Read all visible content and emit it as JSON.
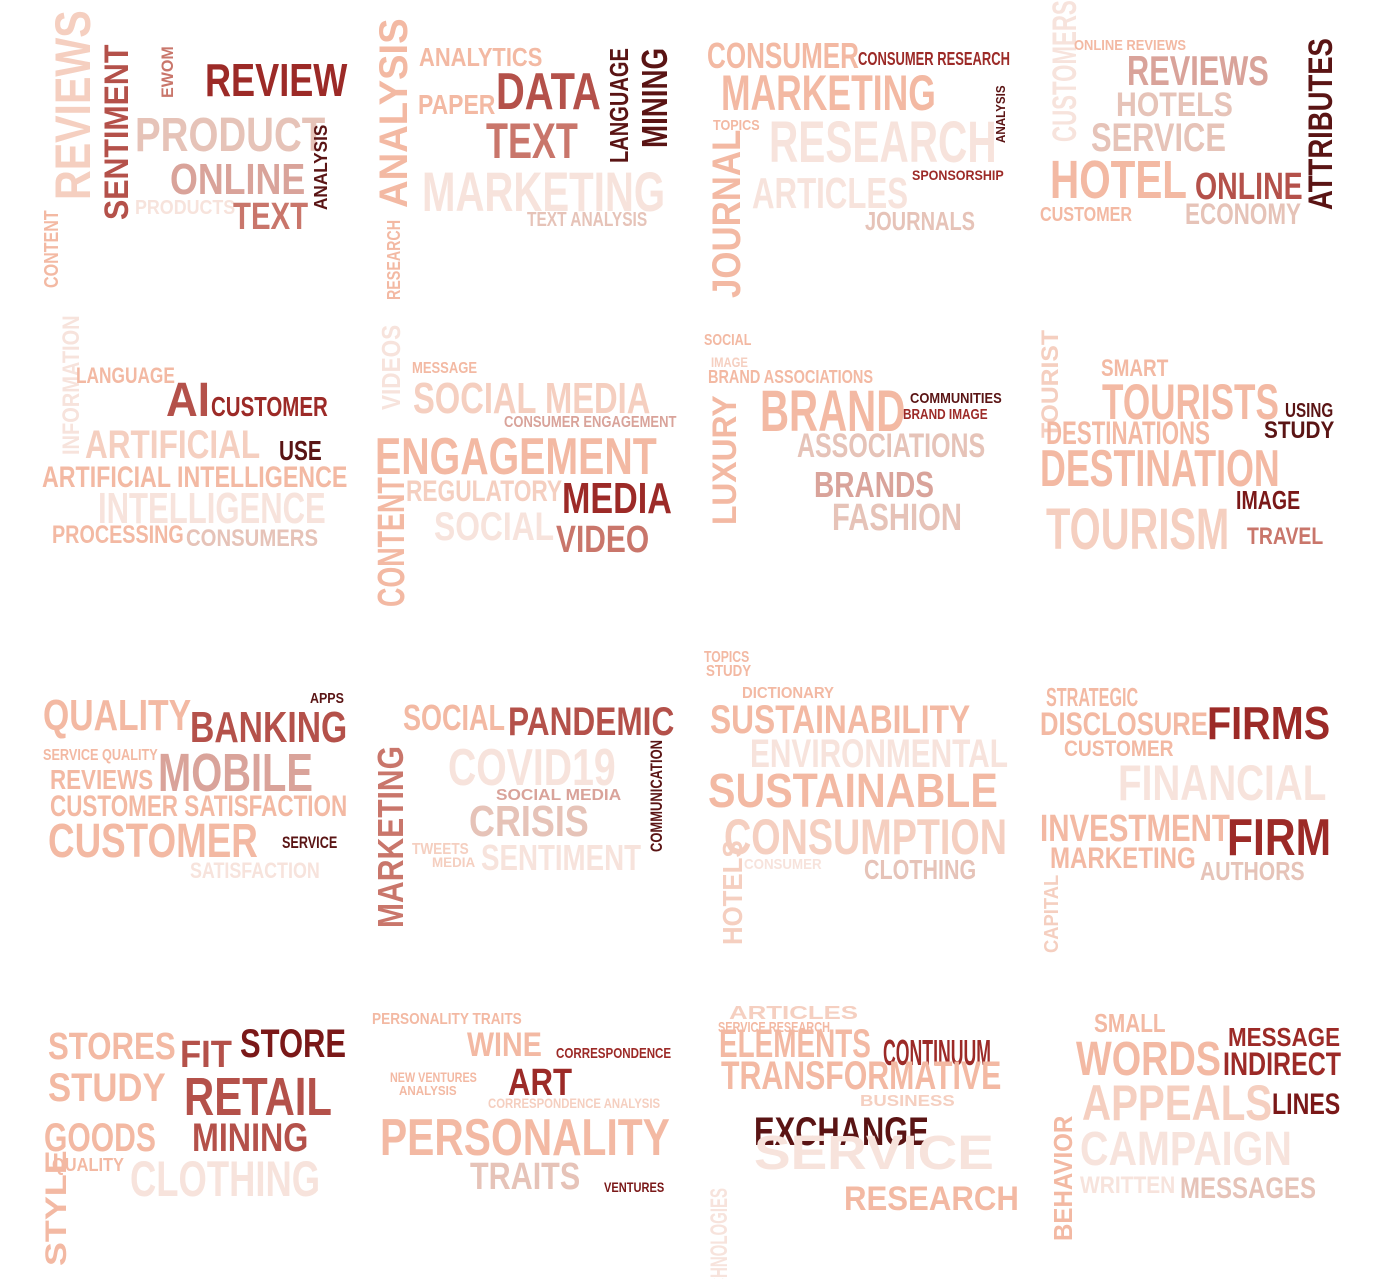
{
  "palette": {
    "c0": "#f7e3dc",
    "c1": "#f5cfc0",
    "c2": "#f3b9a3",
    "c3": "#e6c3b8",
    "c4": "#d9a39a",
    "c5": "#c9766b",
    "c6": "#b4514a",
    "c7": "#9c2a27",
    "c8": "#7a1818",
    "c9": "#5a1414"
  },
  "clouds": [
    {
      "words": [
        {
          "text": "REVIEWS",
          "color": "c1"
        },
        {
          "text": "SENTIMENT",
          "color": "c6"
        },
        {
          "text": "EWOM",
          "color": "c5"
        },
        {
          "text": "REVIEW",
          "color": "c7"
        },
        {
          "text": "PRODUCT",
          "color": "c3"
        },
        {
          "text": "ONLINE",
          "color": "c4"
        },
        {
          "text": "ANALYSIS",
          "color": "c9"
        },
        {
          "text": "PRODUCTS",
          "color": "c0"
        },
        {
          "text": "TEXT",
          "color": "c5"
        },
        {
          "text": "CONTENT",
          "color": "c2"
        }
      ]
    },
    {
      "words": [
        {
          "text": "ANALYSIS",
          "color": "c2"
        },
        {
          "text": "ANALYTICS",
          "color": "c2"
        },
        {
          "text": "DATA",
          "color": "c6"
        },
        {
          "text": "PAPER",
          "color": "c2"
        },
        {
          "text": "TEXT",
          "color": "c5"
        },
        {
          "text": "LANGUAGE",
          "color": "c9"
        },
        {
          "text": "MINING",
          "color": "c9"
        },
        {
          "text": "MARKETING",
          "color": "c0"
        },
        {
          "text": "TEXT ANALYSIS",
          "color": "c3"
        },
        {
          "text": "RESEARCH",
          "color": "c2"
        }
      ]
    },
    {
      "words": [
        {
          "text": "CONSUMER",
          "color": "c2"
        },
        {
          "text": "CONSUMER RESEARCH",
          "color": "c7"
        },
        {
          "text": "MARKETING",
          "color": "c2"
        },
        {
          "text": "ANALYSIS",
          "color": "c9"
        },
        {
          "text": "TOPICS",
          "color": "c2"
        },
        {
          "text": "RESEARCH",
          "color": "c0"
        },
        {
          "text": "JOURNAL",
          "color": "c2"
        },
        {
          "text": "SPONSORSHIP",
          "color": "c7"
        },
        {
          "text": "ARTICLES",
          "color": "c0"
        },
        {
          "text": "JOURNALS",
          "color": "c3"
        }
      ]
    },
    {
      "words": [
        {
          "text": "CUSTOMERS",
          "color": "c0"
        },
        {
          "text": "ONLINE REVIEWS",
          "color": "c2"
        },
        {
          "text": "REVIEWS",
          "color": "c4"
        },
        {
          "text": "HOTELS",
          "color": "c3"
        },
        {
          "text": "SERVICE",
          "color": "c3"
        },
        {
          "text": "ATTRIBUTES",
          "color": "c9"
        },
        {
          "text": "HOTEL",
          "color": "c2"
        },
        {
          "text": "ONLINE",
          "color": "c6"
        },
        {
          "text": "CUSTOMER",
          "color": "c2"
        },
        {
          "text": "ECONOMY",
          "color": "c3"
        }
      ]
    },
    {
      "words": [
        {
          "text": "INFORMATION",
          "color": "c0"
        },
        {
          "text": "LANGUAGE",
          "color": "c2"
        },
        {
          "text": "AI",
          "color": "c6"
        },
        {
          "text": "CUSTOMER",
          "color": "c7"
        },
        {
          "text": "ARTIFICIAL",
          "color": "c1"
        },
        {
          "text": "USE",
          "color": "c9"
        },
        {
          "text": "ARTIFICIAL INTELLIGENCE",
          "color": "c2"
        },
        {
          "text": "INTELLIGENCE",
          "color": "c0"
        },
        {
          "text": "PROCESSING",
          "color": "c2"
        },
        {
          "text": "CONSUMERS",
          "color": "c3"
        }
      ]
    },
    {
      "words": [
        {
          "text": "VIDEOS",
          "color": "c0"
        },
        {
          "text": "MESSAGE",
          "color": "c2"
        },
        {
          "text": "SOCIAL MEDIA",
          "color": "c1"
        },
        {
          "text": "CONSUMER ENGAGEMENT",
          "color": "c4"
        },
        {
          "text": "ENGAGEMENT",
          "color": "c2"
        },
        {
          "text": "CONTENT",
          "color": "c2"
        },
        {
          "text": "REGULATORY",
          "color": "c1"
        },
        {
          "text": "MEDIA",
          "color": "c7"
        },
        {
          "text": "SOCIAL",
          "color": "c0"
        },
        {
          "text": "VIDEO",
          "color": "c5"
        }
      ]
    },
    {
      "words": [
        {
          "text": "SOCIAL",
          "color": "c2"
        },
        {
          "text": "IMAGE",
          "color": "c1"
        },
        {
          "text": "BRAND ASSOCIATIONS",
          "color": "c2"
        },
        {
          "text": "LUXURY",
          "color": "c2"
        },
        {
          "text": "BRAND",
          "color": "c2"
        },
        {
          "text": "COMMUNITIES",
          "color": "c9"
        },
        {
          "text": "BRAND IMAGE",
          "color": "c7"
        },
        {
          "text": "ASSOCIATIONS",
          "color": "c3"
        },
        {
          "text": "BRANDS",
          "color": "c4"
        },
        {
          "text": "FASHION",
          "color": "c3"
        }
      ]
    },
    {
      "words": [
        {
          "text": "TOURIST",
          "color": "c1"
        },
        {
          "text": "SMART",
          "color": "c2"
        },
        {
          "text": "TOURISTS",
          "color": "c2"
        },
        {
          "text": "USING",
          "color": "c9"
        },
        {
          "text": "DESTINATIONS",
          "color": "c2"
        },
        {
          "text": "STUDY",
          "color": "c9"
        },
        {
          "text": "DESTINATION",
          "color": "c2"
        },
        {
          "text": "IMAGE",
          "color": "c8"
        },
        {
          "text": "TOURISM",
          "color": "c1"
        },
        {
          "text": "TRAVEL",
          "color": "c5"
        }
      ]
    },
    {
      "words": [
        {
          "text": "QUALITY",
          "color": "c2"
        },
        {
          "text": "APPS",
          "color": "c9"
        },
        {
          "text": "BANKING",
          "color": "c6"
        },
        {
          "text": "SERVICE QUALITY",
          "color": "c2"
        },
        {
          "text": "MOBILE",
          "color": "c4"
        },
        {
          "text": "REVIEWS",
          "color": "c2"
        },
        {
          "text": "CUSTOMER SATISFACTION",
          "color": "c2"
        },
        {
          "text": "CUSTOMER",
          "color": "c2"
        },
        {
          "text": "SERVICE",
          "color": "c9"
        },
        {
          "text": "SATISFACTION",
          "color": "c0"
        }
      ]
    },
    {
      "words": [
        {
          "text": "SOCIAL",
          "color": "c2"
        },
        {
          "text": "PANDEMIC",
          "color": "c6"
        },
        {
          "text": "COVID19",
          "color": "c0"
        },
        {
          "text": "COMMUNICATION",
          "color": "c9"
        },
        {
          "text": "MARKETING",
          "color": "c5"
        },
        {
          "text": "SOCIAL MEDIA",
          "color": "c4"
        },
        {
          "text": "CRISIS",
          "color": "c3"
        },
        {
          "text": "TWEETS",
          "color": "c1"
        },
        {
          "text": "MEDIA",
          "color": "c1"
        },
        {
          "text": "SENTIMENT",
          "color": "c0"
        }
      ]
    },
    {
      "words": [
        {
          "text": "TOPICS",
          "color": "c2"
        },
        {
          "text": "STUDY",
          "color": "c2"
        },
        {
          "text": "DICTIONARY",
          "color": "c2"
        },
        {
          "text": "SUSTAINABILITY",
          "color": "c2"
        },
        {
          "text": "ENVIRONMENTAL",
          "color": "c0"
        },
        {
          "text": "SUSTAINABLE",
          "color": "c2"
        },
        {
          "text": "CONSUMPTION",
          "color": "c1"
        },
        {
          "text": "HOTELS",
          "color": "c1"
        },
        {
          "text": "CONSUMER",
          "color": "c0"
        },
        {
          "text": "CLOTHING",
          "color": "c3"
        }
      ]
    },
    {
      "words": [
        {
          "text": "STRATEGIC",
          "color": "c2"
        },
        {
          "text": "DISCLOSURE",
          "color": "c2"
        },
        {
          "text": "FIRMS",
          "color": "c7"
        },
        {
          "text": "CUSTOMER",
          "color": "c2"
        },
        {
          "text": "FINANCIAL",
          "color": "c0"
        },
        {
          "text": "INVESTMENT",
          "color": "c2"
        },
        {
          "text": "FIRM",
          "color": "c7"
        },
        {
          "text": "MARKETING",
          "color": "c2"
        },
        {
          "text": "AUTHORS",
          "color": "c3"
        },
        {
          "text": "CAPITAL",
          "color": "c1"
        }
      ]
    },
    {
      "words": [
        {
          "text": "STORES",
          "color": "c2"
        },
        {
          "text": "FIT",
          "color": "c6"
        },
        {
          "text": "STORE",
          "color": "c8"
        },
        {
          "text": "STUDY",
          "color": "c2"
        },
        {
          "text": "RETAIL",
          "color": "c6"
        },
        {
          "text": "MINING",
          "color": "c6"
        },
        {
          "text": "GOODS",
          "color": "c2"
        },
        {
          "text": "QUALITY",
          "color": "c2"
        },
        {
          "text": "CLOTHING",
          "color": "c0"
        },
        {
          "text": "STYLE",
          "color": "c2"
        }
      ]
    },
    {
      "words": [
        {
          "text": "PERSONALITY TRAITS",
          "color": "c2"
        },
        {
          "text": "WINE",
          "color": "c2"
        },
        {
          "text": "CORRESPONDENCE",
          "color": "c7"
        },
        {
          "text": "NEW VENTURES",
          "color": "c2"
        },
        {
          "text": "ANALYSIS",
          "color": "c2"
        },
        {
          "text": "ART",
          "color": "c7"
        },
        {
          "text": "CORRESPONDENCE ANALYSIS",
          "color": "c1"
        },
        {
          "text": "PERSONALITY",
          "color": "c2"
        },
        {
          "text": "TRAITS",
          "color": "c3"
        },
        {
          "text": "VENTURES",
          "color": "c8"
        }
      ]
    },
    {
      "words": [
        {
          "text": "ARTICLES",
          "color": "c1"
        },
        {
          "text": "SERVICE RESEARCH",
          "color": "c2"
        },
        {
          "text": "ELEMENTS",
          "color": "c2"
        },
        {
          "text": "CONTINUUM",
          "color": "c7"
        },
        {
          "text": "TRANSFORMATIVE",
          "color": "c2"
        },
        {
          "text": "BUSINESS",
          "color": "c1"
        },
        {
          "text": "EXCHANGE",
          "color": "c9"
        },
        {
          "text": "SERVICE",
          "color": "c0"
        },
        {
          "text": "RESEARCH",
          "color": "c2"
        },
        {
          "text": "TECHNOLOGIES",
          "color": "c0"
        }
      ]
    },
    {
      "words": [
        {
          "text": "SMALL",
          "color": "c2"
        },
        {
          "text": "MESSAGE",
          "color": "c7"
        },
        {
          "text": "WORDS",
          "color": "c2"
        },
        {
          "text": "INDIRECT",
          "color": "c7"
        },
        {
          "text": "APPEALS",
          "color": "c1"
        },
        {
          "text": "LINES",
          "color": "c8"
        },
        {
          "text": "BEHAVIOR",
          "color": "c2"
        },
        {
          "text": "CAMPAIGN",
          "color": "c0"
        },
        {
          "text": "WRITTEN",
          "color": "c0"
        },
        {
          "text": "MESSAGES",
          "color": "c3"
        }
      ]
    }
  ]
}
